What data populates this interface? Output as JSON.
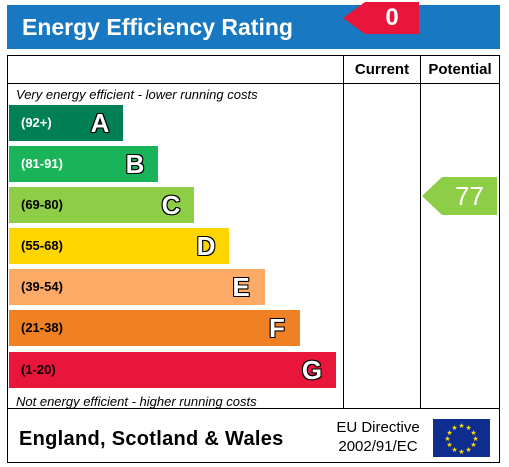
{
  "header": {
    "title": "Energy Efficiency Rating",
    "score_badge": "0"
  },
  "columns": {
    "current": "Current",
    "potential": "Potential"
  },
  "notes": {
    "top": "Very energy efficient - lower running costs",
    "bottom": "Not energy efficient - higher running costs"
  },
  "bands": [
    {
      "range": "(92+)",
      "letter": "A",
      "color": "#008054",
      "range_color": "#ffffff"
    },
    {
      "range": "(81-91)",
      "letter": "B",
      "color": "#19b459",
      "range_color": "#ffffff"
    },
    {
      "range": "(69-80)",
      "letter": "C",
      "color": "#8dce46",
      "range_color": "#000000"
    },
    {
      "range": "(55-68)",
      "letter": "D",
      "color": "#ffd500",
      "range_color": "#000000"
    },
    {
      "range": "(39-54)",
      "letter": "E",
      "color": "#fcaa65",
      "range_color": "#000000"
    },
    {
      "range": "(21-38)",
      "letter": "F",
      "color": "#ef8023",
      "range_color": "#000000"
    },
    {
      "range": "(1-20)",
      "letter": "G",
      "color": "#e9153b",
      "range_color": "#000000"
    }
  ],
  "potential": {
    "value": "77",
    "band": "C",
    "color": "#8dce46"
  },
  "footer": {
    "country": "England, Scotland & Wales",
    "directive_line1": "EU Directive",
    "directive_line2": "2002/91/EC"
  },
  "colors": {
    "header": "#1878c1",
    "badge": "#e9153b"
  }
}
